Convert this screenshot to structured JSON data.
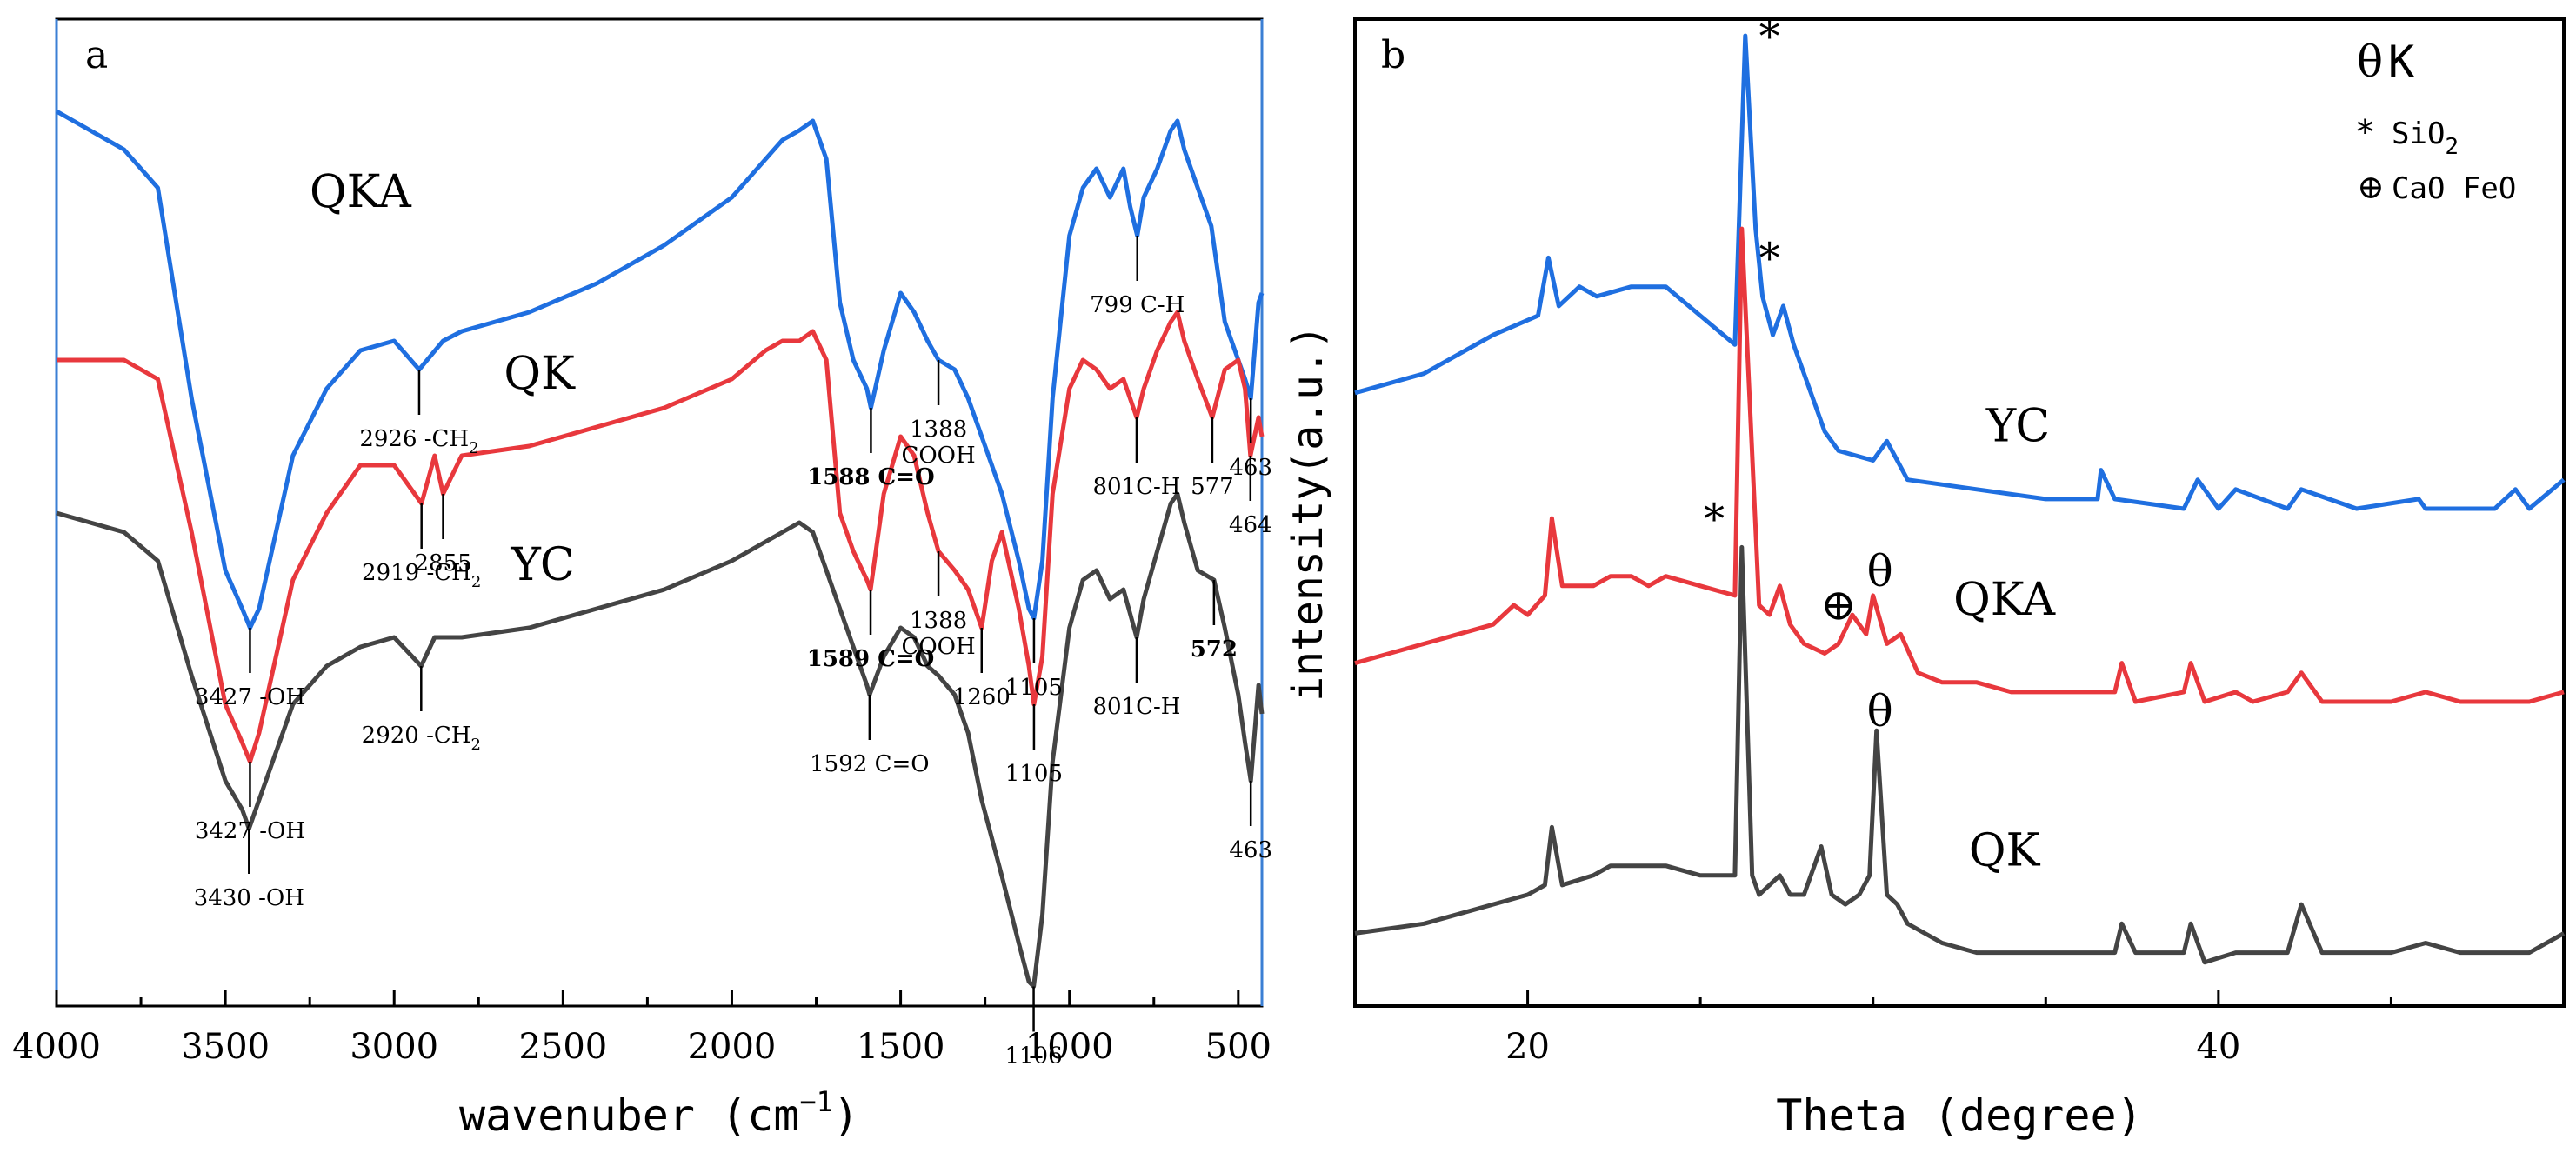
{
  "colors": {
    "blue": "#1f6fe0",
    "red": "#e8383d",
    "gray": "#444444",
    "axis": "#000000",
    "frame_a": "#3b7fd4"
  },
  "chart_data": [
    {
      "panel": "a",
      "type": "line",
      "xlabel": "wavenuber (cm",
      "xlabel_sup": "−1",
      "xlabel_close": ")",
      "xlim": [
        4000,
        430
      ],
      "ylim": [
        0,
        1
      ],
      "xticks": [
        4000,
        3500,
        3000,
        2500,
        2000,
        1500,
        1000,
        500
      ],
      "series": [
        {
          "name": "QKA",
          "color": "#1f6fe0",
          "x": [
            4000,
            3900,
            3800,
            3700,
            3600,
            3500,
            3450,
            3427,
            3400,
            3300,
            3200,
            3100,
            3000,
            2926,
            2855,
            2800,
            2600,
            2400,
            2200,
            2000,
            1900,
            1850,
            1800,
            1760,
            1720,
            1680,
            1640,
            1600,
            1588,
            1550,
            1500,
            1460,
            1420,
            1388,
            1340,
            1300,
            1260,
            1200,
            1150,
            1120,
            1105,
            1080,
            1050,
            1000,
            960,
            920,
            880,
            840,
            820,
            799,
            780,
            740,
            700,
            680,
            660,
            620,
            580,
            540,
            500,
            480,
            463,
            440,
            430
          ],
          "y": [
            0.92,
            0.9,
            0.88,
            0.84,
            0.62,
            0.44,
            0.4,
            0.38,
            0.4,
            0.56,
            0.63,
            0.67,
            0.68,
            0.65,
            0.68,
            0.69,
            0.71,
            0.74,
            0.78,
            0.83,
            0.87,
            0.89,
            0.9,
            0.91,
            0.87,
            0.72,
            0.66,
            0.63,
            0.61,
            0.67,
            0.73,
            0.71,
            0.68,
            0.66,
            0.65,
            0.62,
            0.58,
            0.52,
            0.45,
            0.4,
            0.39,
            0.45,
            0.62,
            0.79,
            0.84,
            0.86,
            0.83,
            0.86,
            0.82,
            0.79,
            0.83,
            0.86,
            0.9,
            0.91,
            0.88,
            0.84,
            0.8,
            0.7,
            0.66,
            0.64,
            0.62,
            0.72,
            0.73
          ]
        },
        {
          "name": "QK",
          "color": "#e8383d",
          "x": [
            4000,
            3900,
            3800,
            3700,
            3600,
            3500,
            3450,
            3427,
            3400,
            3300,
            3200,
            3100,
            3000,
            2919,
            2880,
            2855,
            2800,
            2600,
            2400,
            2200,
            2000,
            1900,
            1850,
            1800,
            1760,
            1720,
            1680,
            1640,
            1600,
            1589,
            1550,
            1500,
            1460,
            1420,
            1388,
            1340,
            1300,
            1260,
            1230,
            1200,
            1150,
            1120,
            1105,
            1080,
            1050,
            1000,
            960,
            920,
            880,
            840,
            801,
            780,
            740,
            700,
            680,
            660,
            620,
            577,
            540,
            500,
            480,
            464,
            440,
            430
          ],
          "y": [
            0.66,
            0.66,
            0.66,
            0.64,
            0.48,
            0.3,
            0.26,
            0.24,
            0.27,
            0.43,
            0.5,
            0.55,
            0.55,
            0.51,
            0.56,
            0.52,
            0.56,
            0.57,
            0.59,
            0.61,
            0.64,
            0.67,
            0.68,
            0.68,
            0.69,
            0.66,
            0.5,
            0.46,
            0.43,
            0.42,
            0.52,
            0.58,
            0.56,
            0.5,
            0.46,
            0.44,
            0.42,
            0.38,
            0.45,
            0.48,
            0.4,
            0.34,
            0.3,
            0.35,
            0.52,
            0.63,
            0.66,
            0.65,
            0.63,
            0.64,
            0.6,
            0.63,
            0.67,
            0.7,
            0.71,
            0.68,
            0.64,
            0.6,
            0.65,
            0.66,
            0.63,
            0.56,
            0.6,
            0.58
          ]
        },
        {
          "name": "YC",
          "color": "#444444",
          "x": [
            4000,
            3900,
            3800,
            3700,
            3600,
            3500,
            3450,
            3430,
            3400,
            3300,
            3200,
            3100,
            3000,
            2920,
            2880,
            2800,
            2600,
            2400,
            2200,
            2000,
            1900,
            1850,
            1800,
            1760,
            1720,
            1700,
            1680,
            1640,
            1600,
            1592,
            1550,
            1500,
            1460,
            1420,
            1388,
            1340,
            1300,
            1260,
            1200,
            1150,
            1120,
            1106,
            1080,
            1050,
            1000,
            960,
            920,
            880,
            840,
            801,
            780,
            740,
            700,
            680,
            660,
            620,
            572,
            540,
            500,
            480,
            463,
            440,
            430
          ],
          "y": [
            0.5,
            0.49,
            0.48,
            0.45,
            0.33,
            0.22,
            0.19,
            0.17,
            0.2,
            0.3,
            0.34,
            0.36,
            0.37,
            0.34,
            0.37,
            0.37,
            0.38,
            0.4,
            0.42,
            0.45,
            0.47,
            0.48,
            0.49,
            0.48,
            0.44,
            0.42,
            0.4,
            0.36,
            0.32,
            0.31,
            0.35,
            0.38,
            0.37,
            0.34,
            0.33,
            0.31,
            0.27,
            0.2,
            0.12,
            0.05,
            0.01,
            0.005,
            0.08,
            0.24,
            0.38,
            0.43,
            0.44,
            0.41,
            0.42,
            0.37,
            0.41,
            0.46,
            0.51,
            0.52,
            0.49,
            0.44,
            0.43,
            0.38,
            0.31,
            0.26,
            0.22,
            0.32,
            0.29
          ]
        }
      ],
      "labels": [
        {
          "text": "QKA",
          "x": 3100,
          "y": 0.82,
          "size": "big",
          "sid": "QKA"
        },
        {
          "text": "QK",
          "x": 2570,
          "y": 0.63,
          "size": "big",
          "sid": "QK"
        },
        {
          "text": "YC",
          "x": 2560,
          "y": 0.43,
          "size": "big",
          "sid": "YC"
        }
      ],
      "annotations": [
        {
          "series": "QKA",
          "x": 3427,
          "dir": "down",
          "lines": [
            "3427 -OH"
          ]
        },
        {
          "series": "QKA",
          "x": 2926,
          "dir": "down",
          "lines": [
            "2926 -CH",
            "2"
          ]
        },
        {
          "series": "QKA",
          "x": 1588,
          "dir": "down",
          "lines": [
            "1588 C=O"
          ],
          "bold": true
        },
        {
          "series": "QKA",
          "x": 1388,
          "dir": "down",
          "lines": [
            "1388",
            "COOH"
          ]
        },
        {
          "series": "QKA",
          "x": 1105,
          "dir": "down",
          "lines": [
            "1105"
          ]
        },
        {
          "series": "QKA",
          "x": 799,
          "dir": "down",
          "lines": [
            "799 C-H"
          ]
        },
        {
          "series": "QKA",
          "x": 463,
          "dir": "down",
          "lines": [
            "463"
          ]
        },
        {
          "series": "QK",
          "x": 3427,
          "dir": "down",
          "lines": [
            "3427 -OH"
          ]
        },
        {
          "series": "QK",
          "x": 2919,
          "dir": "down",
          "lines": [
            "2919 -CH",
            "2"
          ]
        },
        {
          "series": "QK",
          "x": 2855,
          "dir": "down",
          "lines": [
            "2855"
          ]
        },
        {
          "series": "QK",
          "x": 1589,
          "dir": "down",
          "lines": [
            "1589 C=O"
          ],
          "bold": true
        },
        {
          "series": "QK",
          "x": 1388,
          "dir": "down",
          "lines": [
            "1388",
            "COOH"
          ]
        },
        {
          "series": "QK",
          "x": 1260,
          "dir": "down",
          "lines": [
            "1260"
          ]
        },
        {
          "series": "QK",
          "x": 1105,
          "dir": "down",
          "lines": [
            "1105"
          ]
        },
        {
          "series": "QK",
          "x": 801,
          "dir": "down",
          "lines": [
            "801C-H"
          ]
        },
        {
          "series": "QK",
          "x": 577,
          "dir": "down",
          "lines": [
            "577"
          ]
        },
        {
          "series": "QK",
          "x": 464,
          "dir": "down",
          "lines": [
            "464"
          ]
        },
        {
          "series": "YC",
          "x": 3430,
          "dir": "down",
          "lines": [
            "3430 -OH"
          ]
        },
        {
          "series": "YC",
          "x": 2920,
          "dir": "down",
          "lines": [
            "2920 -CH",
            "2"
          ]
        },
        {
          "series": "YC",
          "x": 1592,
          "dir": "down",
          "lines": [
            "1592 C=O"
          ]
        },
        {
          "series": "YC",
          "x": 1106,
          "dir": "down",
          "lines": [
            "1106"
          ]
        },
        {
          "series": "YC",
          "x": 801,
          "dir": "down",
          "lines": [
            "801C-H"
          ]
        },
        {
          "series": "YC",
          "x": 572,
          "dir": "down",
          "lines": [
            "572"
          ],
          "bold": true
        },
        {
          "series": "YC",
          "x": 463,
          "dir": "down",
          "lines": [
            "463"
          ]
        }
      ]
    },
    {
      "panel": "b",
      "type": "line",
      "xlabel": "Theta (degree)",
      "ylabel": "intensity(a.u.)",
      "xlim": [
        15,
        50
      ],
      "ylim": [
        0,
        1
      ],
      "xticks": [
        20,
        40
      ],
      "series": [
        {
          "name": "YC",
          "color": "#1f6fe0",
          "x": [
            15,
            17,
            19,
            20.3,
            20.6,
            20.9,
            21.5,
            22,
            23,
            24,
            25,
            26,
            26.3,
            26.6,
            26.8,
            27.1,
            27.4,
            27.7,
            28,
            28.3,
            28.6,
            29,
            30,
            30.4,
            31,
            33,
            35,
            36.5,
            36.6,
            37,
            39,
            39.4,
            40,
            40.5,
            42,
            42.4,
            44,
            45.8,
            46,
            47,
            48,
            48.6,
            49,
            50
          ],
          "y": [
            0.62,
            0.64,
            0.68,
            0.7,
            0.76,
            0.71,
            0.73,
            0.72,
            0.73,
            0.73,
            0.7,
            0.67,
            0.99,
            0.79,
            0.72,
            0.68,
            0.71,
            0.67,
            0.64,
            0.61,
            0.58,
            0.56,
            0.55,
            0.57,
            0.53,
            0.52,
            0.51,
            0.51,
            0.54,
            0.51,
            0.5,
            0.53,
            0.5,
            0.52,
            0.5,
            0.52,
            0.5,
            0.51,
            0.5,
            0.5,
            0.5,
            0.52,
            0.5,
            0.53
          ]
        },
        {
          "name": "QKA",
          "color": "#e8383d",
          "x": [
            15,
            17,
            19,
            19.6,
            20,
            20.5,
            20.7,
            21,
            21.9,
            22.4,
            23,
            23.5,
            24,
            25,
            26,
            26.2,
            26.7,
            27,
            27.3,
            27.6,
            28,
            28.6,
            29,
            29.4,
            29.8,
            30,
            30.4,
            30.8,
            31.3,
            32,
            33,
            34,
            35,
            36,
            37,
            37.2,
            37.6,
            39,
            39.2,
            39.6,
            40.5,
            41,
            42,
            42.4,
            43,
            44,
            45,
            46,
            47,
            48,
            49,
            50
          ],
          "y": [
            0.34,
            0.36,
            0.38,
            0.4,
            0.39,
            0.41,
            0.49,
            0.42,
            0.42,
            0.43,
            0.43,
            0.42,
            0.43,
            0.42,
            0.41,
            0.79,
            0.4,
            0.39,
            0.42,
            0.38,
            0.36,
            0.35,
            0.36,
            0.39,
            0.37,
            0.41,
            0.36,
            0.37,
            0.33,
            0.32,
            0.32,
            0.31,
            0.31,
            0.31,
            0.31,
            0.34,
            0.3,
            0.31,
            0.34,
            0.3,
            0.31,
            0.3,
            0.31,
            0.33,
            0.3,
            0.3,
            0.3,
            0.31,
            0.3,
            0.3,
            0.3,
            0.31
          ]
        },
        {
          "name": "QK",
          "color": "#444444",
          "x": [
            15,
            17,
            19,
            20,
            20.5,
            20.7,
            21,
            21.9,
            22.4,
            23,
            24,
            25,
            26,
            26.2,
            26.5,
            26.7,
            27,
            27.3,
            27.6,
            28,
            28.5,
            28.8,
            29.2,
            29.6,
            29.9,
            30.1,
            30.4,
            30.7,
            31,
            32,
            33,
            34,
            35,
            36,
            37,
            37.2,
            37.6,
            39,
            39.2,
            39.6,
            40.5,
            41,
            42,
            42.4,
            43,
            44,
            45,
            46,
            47,
            48,
            49,
            50
          ],
          "y": [
            0.06,
            0.07,
            0.09,
            0.1,
            0.11,
            0.17,
            0.11,
            0.12,
            0.13,
            0.13,
            0.13,
            0.12,
            0.12,
            0.46,
            0.12,
            0.1,
            0.11,
            0.12,
            0.1,
            0.1,
            0.15,
            0.1,
            0.09,
            0.1,
            0.12,
            0.27,
            0.1,
            0.09,
            0.07,
            0.05,
            0.04,
            0.04,
            0.04,
            0.04,
            0.04,
            0.07,
            0.04,
            0.04,
            0.07,
            0.03,
            0.04,
            0.04,
            0.04,
            0.09,
            0.04,
            0.04,
            0.04,
            0.05,
            0.04,
            0.04,
            0.04,
            0.06
          ]
        }
      ],
      "labels": [
        {
          "text": "YC",
          "x": 34.2,
          "y": 0.57,
          "size": "big",
          "sid": "YC"
        },
        {
          "text": "QKA",
          "x": 33.8,
          "y": 0.39,
          "size": "big",
          "sid": "QKA"
        },
        {
          "text": "QK",
          "x": 33.8,
          "y": 0.13,
          "size": "big",
          "sid": "QK"
        }
      ],
      "annotations": [
        {
          "type": "marker",
          "text": "*",
          "x": 27.0,
          "y": 0.975
        },
        {
          "type": "marker",
          "text": "*",
          "x": 27.0,
          "y": 0.745
        },
        {
          "type": "marker",
          "text": "*",
          "x": 25.4,
          "y": 0.475
        },
        {
          "type": "marker",
          "text": "θ",
          "x": 30.2,
          "y": 0.42
        },
        {
          "type": "marker",
          "text": "⊕",
          "x": 29.0,
          "y": 0.385
        },
        {
          "type": "marker",
          "text": "θ",
          "x": 30.2,
          "y": 0.275
        }
      ],
      "legend": {
        "placement": "top-right",
        "items": [
          {
            "symbol": "θ",
            "text": "K"
          },
          {
            "symbol": "*",
            "text": "SiO",
            "sub": "2"
          },
          {
            "symbol": "⊕",
            "text": "CaO FeO"
          }
        ]
      }
    }
  ],
  "panel_a": {
    "letter": "a"
  },
  "panel_b": {
    "letter": "b"
  }
}
